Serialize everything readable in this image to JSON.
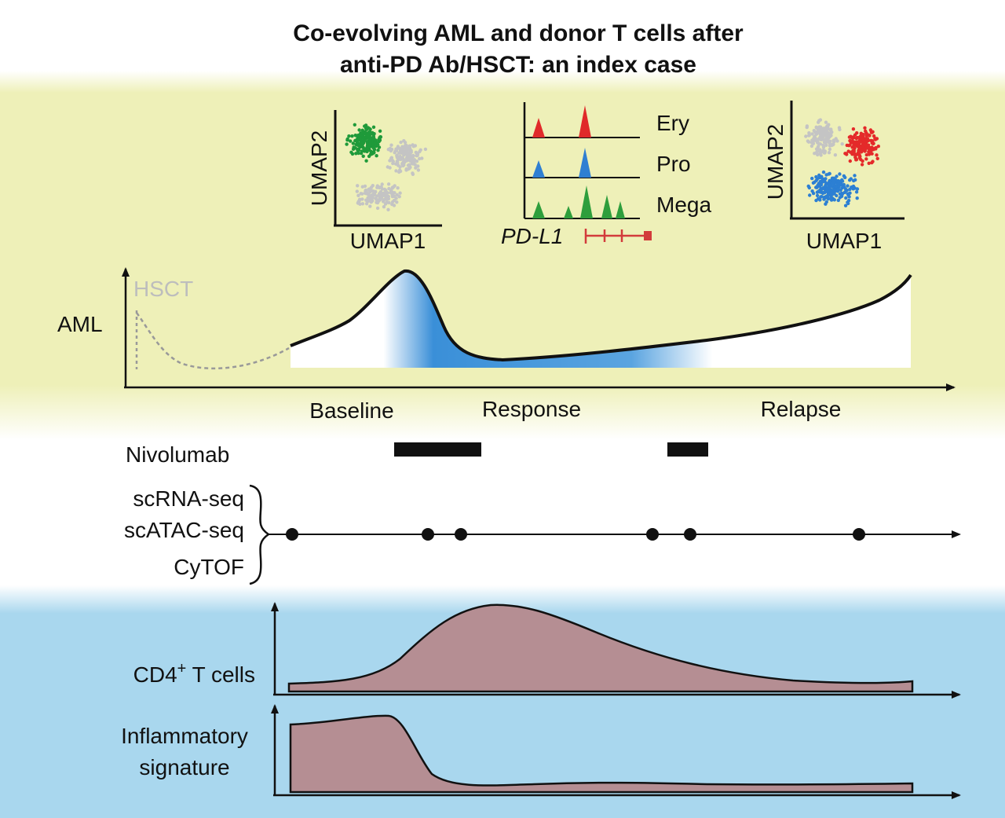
{
  "title": {
    "line1": "Co-evolving AML and donor T cells after",
    "line2": "anti-PD Ab/HSCT: an index case"
  },
  "colors": {
    "top_band": "#eef0b8",
    "bottom_band": "#a9d7ee",
    "aml_response_blue": "#3a8fd8",
    "t_cell_fill": "#b58e93",
    "ery": "#e02a2a",
    "pro": "#2f7fd2",
    "mega": "#2e9e3c",
    "umap_green": "#1f9a3a",
    "umap_red": "#e42a2a",
    "umap_blue": "#2c7fd3",
    "umap_gray": "#c4c4c4",
    "hsct_gray": "#bdbdbd",
    "gene_track": "#d23b3b"
  },
  "umap_left": {
    "x_label": "UMAP1",
    "y_label": "UMAP2"
  },
  "umap_right": {
    "x_label": "UMAP1",
    "y_label": "UMAP2"
  },
  "peaks": {
    "tracks": [
      "Ery",
      "Pro",
      "Mega"
    ],
    "gene": "PD-L1"
  },
  "aml_panel": {
    "y_label": "AML",
    "hsct_label": "HSCT",
    "phases": [
      "Baseline",
      "Response",
      "Relapse"
    ]
  },
  "treatment": {
    "label": "Nivolumab"
  },
  "assays": {
    "labels": [
      "scRNA-seq",
      "scATAC-seq",
      "CyTOF"
    ]
  },
  "cd4_panel": {
    "label_main": "CD4",
    "label_sup": "+",
    "label_rest": " T cells"
  },
  "inflam_panel": {
    "line1": "Inflammatory",
    "line2": "signature"
  }
}
